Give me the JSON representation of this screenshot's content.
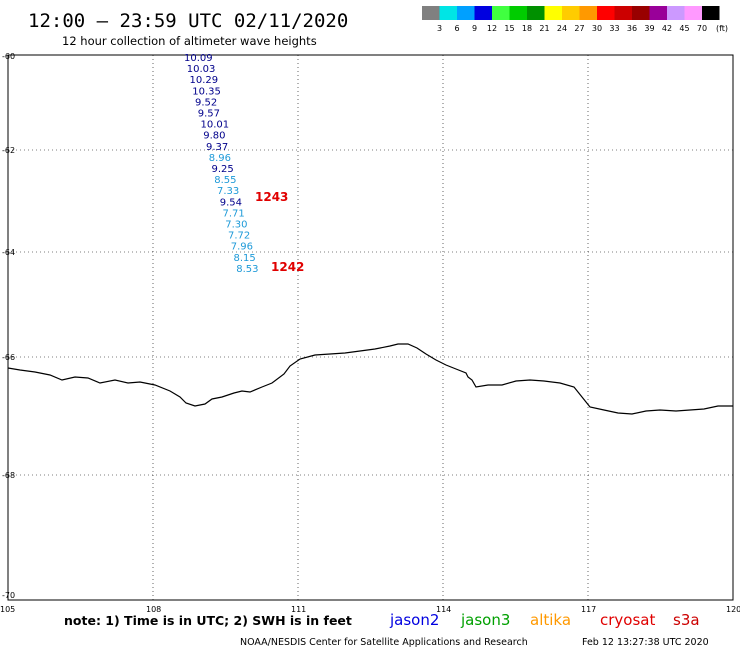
{
  "header": {
    "title": "12:00 – 23:59 UTC 02/11/2020",
    "subtitle": "12 hour collection of altimeter wave heights"
  },
  "color_scale": {
    "labels": [
      "3",
      "6",
      "9",
      "12",
      "15",
      "18",
      "21",
      "24",
      "27",
      "30",
      "33",
      "36",
      "39",
      "42",
      "45",
      "70"
    ],
    "unit": "(ft)",
    "colors": [
      "#808080",
      "#00e5e5",
      "#00a0ff",
      "#0000e0",
      "#40ff40",
      "#00cc00",
      "#009000",
      "#ffff00",
      "#ffcc00",
      "#ff9900",
      "#ff0000",
      "#cc0000",
      "#990000",
      "#990099",
      "#cc99ff",
      "#ff99ff",
      "#000000"
    ]
  },
  "map": {
    "lat_labels": [
      "-60",
      "-62",
      "-64",
      "-66",
      "-68",
      "-70"
    ],
    "lon_labels": [
      "105",
      "108",
      "111",
      "114",
      "117",
      "120"
    ],
    "wave_heights": [
      {
        "value": "10.09",
        "color": "#00008b"
      },
      {
        "value": "10.03",
        "color": "#00008b"
      },
      {
        "value": "10.29",
        "color": "#00008b"
      },
      {
        "value": "10.35",
        "color": "#00008b"
      },
      {
        "value": "9.52",
        "color": "#00008b"
      },
      {
        "value": "9.57",
        "color": "#00008b"
      },
      {
        "value": "10.01",
        "color": "#00008b"
      },
      {
        "value": "9.80",
        "color": "#00008b"
      },
      {
        "value": "9.37",
        "color": "#00008b"
      },
      {
        "value": "8.96",
        "color": "#1e9ad8"
      },
      {
        "value": "9.25",
        "color": "#00008b"
      },
      {
        "value": "8.55",
        "color": "#1e9ad8"
      },
      {
        "value": "7.33",
        "color": "#1e9ad8"
      },
      {
        "value": "9.54",
        "color": "#00008b"
      },
      {
        "value": "7.71",
        "color": "#1e9ad8"
      },
      {
        "value": "7.30",
        "color": "#1e9ad8"
      },
      {
        "value": "7.72",
        "color": "#1e9ad8"
      },
      {
        "value": "7.96",
        "color": "#1e9ad8"
      },
      {
        "value": "8.15",
        "color": "#1e9ad8"
      },
      {
        "value": "8.53",
        "color": "#1e9ad8"
      }
    ],
    "pass_times": [
      "1243",
      "1242"
    ]
  },
  "footer": {
    "note": "note:  1) Time is in UTC;  2) SWH is in feet",
    "missions": [
      {
        "name": "jason2",
        "color": "#0000e0"
      },
      {
        "name": "jason3",
        "color": "#00a000"
      },
      {
        "name": "altika",
        "color": "#ff9900"
      },
      {
        "name": "cryosat",
        "color": "#e00000"
      },
      {
        "name": "s3a",
        "color": "#cc0000"
      }
    ],
    "credit": "NOAA/NESDIS Center for Satellite Applications and Research",
    "timestamp": "Feb 12 13:27:38 UTC 2020"
  }
}
